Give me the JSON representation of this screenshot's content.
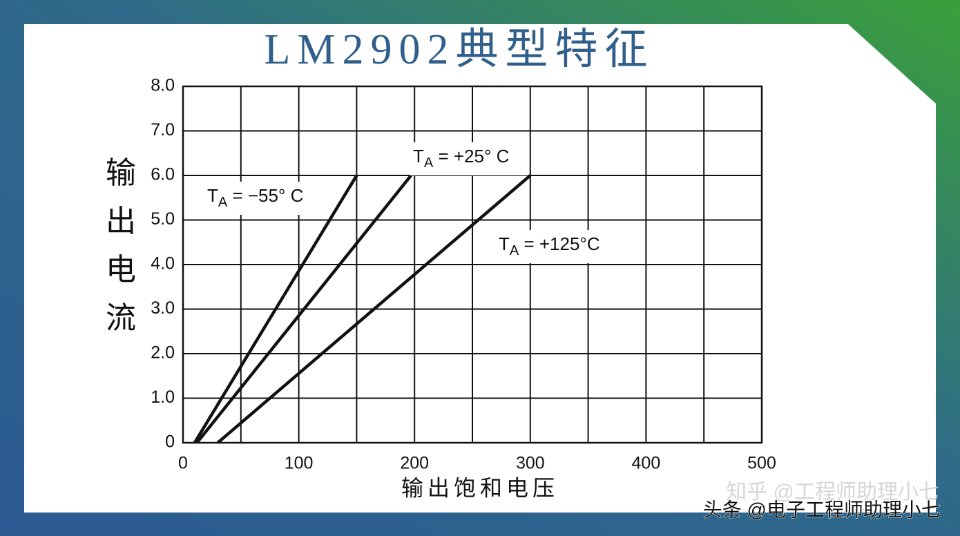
{
  "chart_data": {
    "type": "line",
    "title": "LM2902典型特征",
    "y_label": [
      "输",
      "出",
      "电",
      "流"
    ],
    "x_label": "输出饱和电压",
    "xlim": [
      0,
      500
    ],
    "xticks": [
      0,
      100,
      200,
      300,
      400,
      500
    ],
    "x_minor_grid": [
      50,
      150,
      250,
      350,
      450
    ],
    "ylim": [
      0,
      8
    ],
    "yticks": [
      0,
      {
        "value": 1,
        "label": "1.0"
      },
      {
        "value": 2,
        "label": "2.0"
      },
      {
        "value": 3,
        "label": "3.0"
      },
      {
        "value": 4,
        "label": "4.0"
      },
      {
        "value": 5,
        "label": "5.0"
      },
      {
        "value": 6,
        "label": "6.0"
      },
      {
        "value": 7,
        "label": "7.0"
      },
      {
        "value": 8,
        "label": "8.0"
      }
    ],
    "grid": true,
    "series": [
      {
        "name": "TA = −55° C",
        "color": "#111111",
        "x": [
          10,
          150
        ],
        "values": [
          0,
          6
        ]
      },
      {
        "name": "TA = +25° C",
        "color": "#111111",
        "x": [
          12,
          197
        ],
        "values": [
          0,
          6
        ]
      },
      {
        "name": "TA = +125°C",
        "color": "#111111",
        "x": [
          30,
          300
        ],
        "values": [
          0,
          6
        ]
      }
    ],
    "watermarks": [
      "知乎 @工程师助理小七",
      "头条 @电子工程师助理小七"
    ]
  }
}
